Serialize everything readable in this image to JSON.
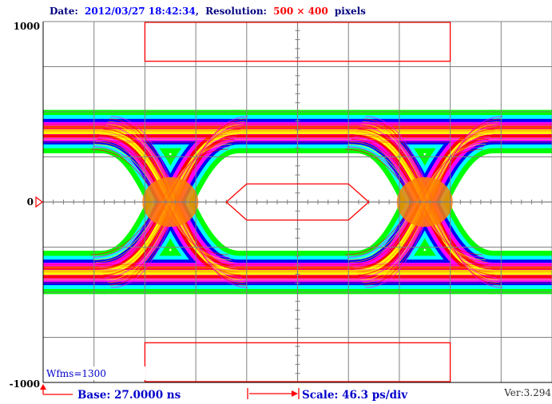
{
  "header": {
    "date_label": "Date:",
    "date_value": "2012/03/27 18:42:34",
    "separator": ",",
    "resolution_label": "Resolution:",
    "resolution_value": "500 × 400",
    "resolution_unit": "pixels"
  },
  "footer": {
    "base_label": "Base: 27.0000 ns",
    "scale_label": "Scale: 46.3 ps/div",
    "version": "Ver:3.294"
  },
  "waveforms_label": "Wfms=1300",
  "colors": {
    "header_text": "#000080",
    "header_value": "#0000ff",
    "resolution_value": "#ff0000",
    "grid": "#808080",
    "mask": "#ff0000",
    "label_blue": "#0000cc",
    "palette": [
      "#00ff00",
      "#00ffff",
      "#0000ff",
      "#ff00ff",
      "#ff0000",
      "#ffff00",
      "#ff8000"
    ]
  },
  "chart_data": {
    "type": "eye-diagram",
    "y_ticks": [
      "1000",
      "0",
      "-1000"
    ],
    "ylim": [
      -1000,
      1000
    ],
    "divisions": {
      "x": 10,
      "y": 8
    },
    "grid": true,
    "upper_level": 390,
    "lower_level": -390,
    "crossing_points_div": [
      2.5,
      7.5
    ],
    "mask_polygon": [
      [
        3.6,
        0
      ],
      [
        4.0,
        100
      ],
      [
        6.0,
        100
      ],
      [
        6.4,
        0
      ],
      [
        6.0,
        -100
      ],
      [
        4.0,
        -100
      ]
    ],
    "mask_upper": {
      "x_div": [
        2,
        8
      ],
      "y": [
        780,
        1000
      ]
    },
    "mask_lower": {
      "x_div": [
        2,
        8
      ],
      "y": [
        -1000,
        -780
      ]
    }
  }
}
